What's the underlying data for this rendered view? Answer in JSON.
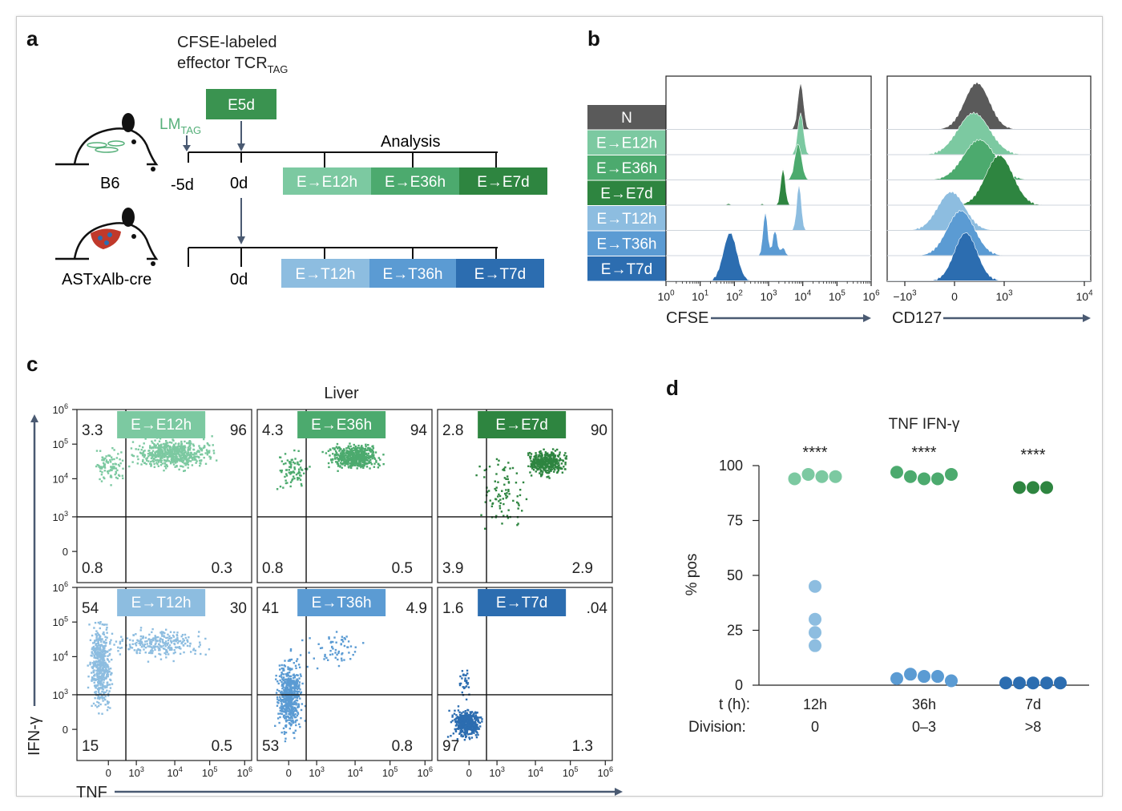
{
  "colors": {
    "e12": "#7cc9a1",
    "e36": "#4caa6e",
    "e7": "#2e8540",
    "t12": "#8dbde0",
    "t36": "#5b9bd3",
    "t7": "#2c6db0",
    "naive": "#5a5a5a",
    "e5d": "#3a9350",
    "lm": "#56b07a",
    "axis": "#4a5a72"
  },
  "panel_a": {
    "letter": "a",
    "cfse_title_line1": "CFSE-labeled",
    "cfse_title_line2_main": "effector TCR",
    "cfse_title_line2_sub": "TAG",
    "e5d_label": "E5d",
    "lm_main": "LM",
    "lm_sub": "TAG",
    "analysis_label": "Analysis",
    "mouse_top_label": "B6",
    "mouse_bottom_label": "ASTxAlb-cre",
    "tick_minus5d": "-5d",
    "tick_0d_top": "0d",
    "tick_0d_bottom": "0d",
    "e_boxes": [
      "E→E12h",
      "E→E36h",
      "E→E7d"
    ],
    "t_boxes": [
      "E→T12h",
      "E→T36h",
      "E→T7d"
    ]
  },
  "panel_b": {
    "letter": "b",
    "rows": [
      "N",
      "E→E12h",
      "E→E36h",
      "E→E7d",
      "E→T12h",
      "E→T36h",
      "E→T7d"
    ],
    "cfse_ticks": [
      {
        "b": "10",
        "e": "0"
      },
      {
        "b": "10",
        "e": "1"
      },
      {
        "b": "10",
        "e": "2"
      },
      {
        "b": "10",
        "e": "3"
      },
      {
        "b": "10",
        "e": "4"
      },
      {
        "b": "10",
        "e": "5"
      },
      {
        "b": "10",
        "e": "6"
      }
    ],
    "cd127_ticks": [
      {
        "b": "−10",
        "e": "3"
      },
      {
        "b": "0",
        "e": ""
      },
      {
        "b": "10",
        "e": "3"
      },
      {
        "b": "10",
        "e": "4"
      }
    ],
    "cfse_label": "CFSE",
    "cd127_label": "CD127"
  },
  "panel_c": {
    "letter": "c",
    "title": "Liver",
    "ylabel": "IFN-γ",
    "xlabel": "TNF",
    "y_ticks": [
      {
        "b": "10",
        "e": "6"
      },
      {
        "b": "10",
        "e": "5"
      },
      {
        "b": "10",
        "e": "4"
      },
      {
        "b": "10",
        "e": "3"
      },
      {
        "b": "0",
        "e": ""
      }
    ],
    "x_ticks": [
      {
        "b": "0",
        "e": ""
      },
      {
        "b": "10",
        "e": "3"
      },
      {
        "b": "10",
        "e": "4"
      },
      {
        "b": "10",
        "e": "5"
      },
      {
        "b": "10",
        "e": "6"
      }
    ],
    "plots": [
      {
        "label": "E→E12h",
        "ul": "3.3",
        "ur": "96",
        "ll": "0.8",
        "lr": "0.3"
      },
      {
        "label": "E→E36h",
        "ul": "4.3",
        "ur": "94",
        "ll": "0.8",
        "lr": "0.5"
      },
      {
        "label": "E→E7d",
        "ul": "2.8",
        "ur": "90",
        "ll": "3.9",
        "lr": "2.9"
      },
      {
        "label": "E→T12h",
        "ul": "54",
        "ur": "30",
        "ll": "15",
        "lr": "0.5"
      },
      {
        "label": "E→T36h",
        "ul": "41",
        "ur": "4.9",
        "ll": "53",
        "lr": "0.8"
      },
      {
        "label": "E→T7d",
        "ul": "1.6",
        "ur": ".04",
        "ll": "97",
        "lr": "1.3"
      }
    ]
  },
  "panel_d": {
    "letter": "d",
    "row_t_label": "t (h):",
    "row_div_label": "Division:",
    "time_labels": [
      "12h",
      "36h",
      "7d"
    ],
    "division_labels": [
      "0",
      "0–3",
      ">8"
    ],
    "significance": [
      "****",
      "****",
      "****"
    ]
  },
  "chart_data": {
    "type": "scatter",
    "title": "TNF IFN-γ",
    "ylabel": "% pos",
    "categories": [
      "12h",
      "36h",
      "7d"
    ],
    "ylim": [
      0,
      100
    ],
    "y_ticks": [
      0,
      25,
      50,
      75,
      100
    ],
    "grid": false,
    "series": [
      {
        "group": "E",
        "values": [
          [
            94,
            96,
            95,
            95
          ],
          [
            97,
            95,
            94,
            94,
            96
          ],
          [
            90,
            90,
            90
          ]
        ]
      },
      {
        "group": "T",
        "values": [
          [
            45,
            30,
            24,
            18
          ],
          [
            3,
            5,
            4,
            4,
            2
          ],
          [
            1,
            1,
            1,
            1,
            1
          ]
        ]
      }
    ]
  }
}
